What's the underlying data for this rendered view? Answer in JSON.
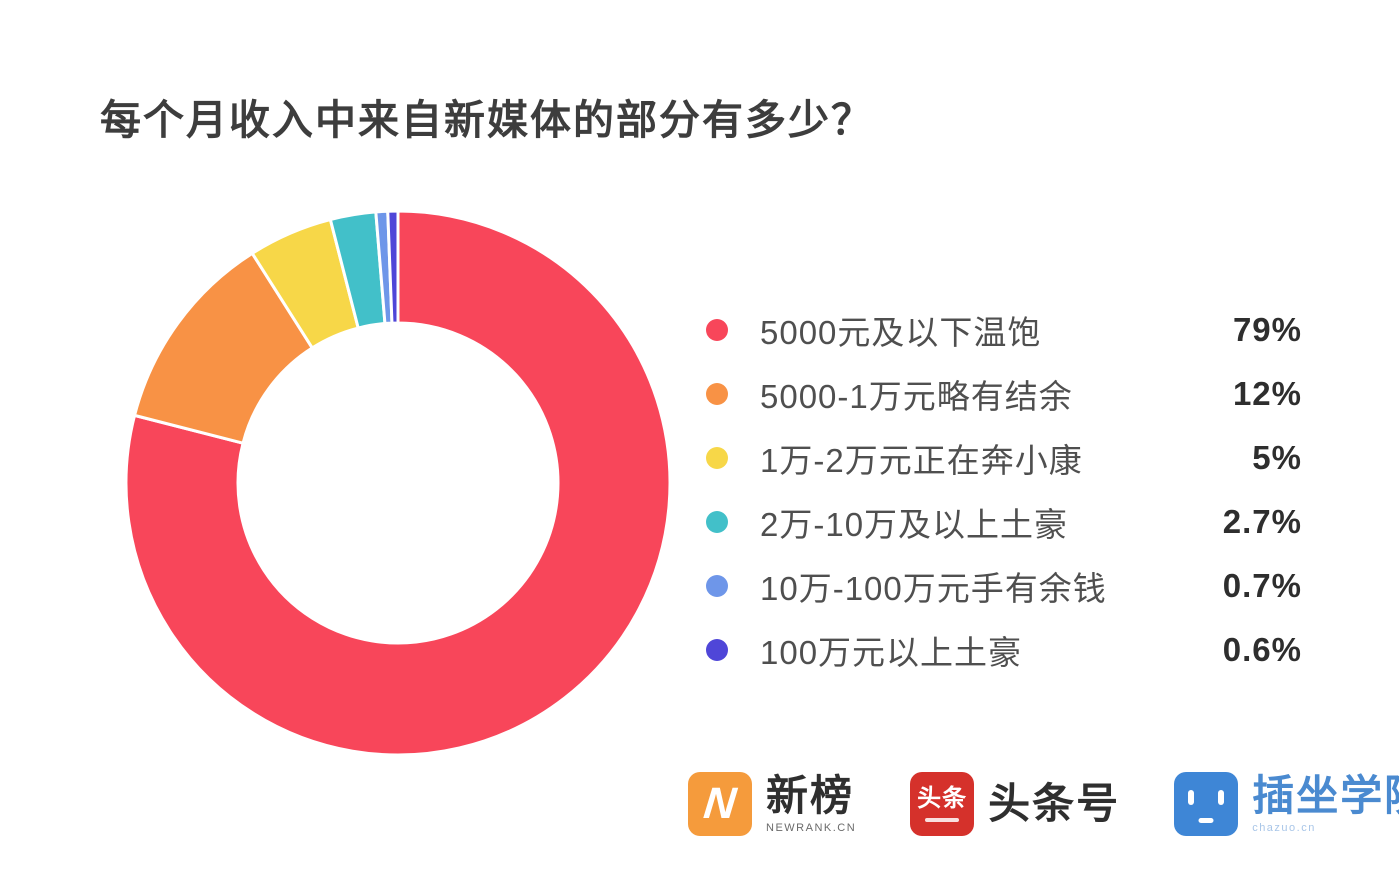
{
  "chart_data": {
    "type": "pie",
    "variant": "donut",
    "title": "每个月收入中来自新媒体的部分有多少？",
    "legend_position": "right",
    "start_angle_deg": 0,
    "direction": "clockwise",
    "items": [
      {
        "label": "5000元及以下温饱",
        "value": 79,
        "percent_label": "79%",
        "color": "#F8465A"
      },
      {
        "label": "5000-1万元略有结余",
        "value": 12,
        "percent_label": "12%",
        "color": "#F89245"
      },
      {
        "label": "1万-2万元正在奔小康",
        "value": 5,
        "percent_label": "5%",
        "color": "#F7D748"
      },
      {
        "label": "2万-10万及以上土豪",
        "value": 2.7,
        "percent_label": "2.7%",
        "color": "#42C0C9"
      },
      {
        "label": "10万-100万元手有余钱",
        "value": 0.7,
        "percent_label": "0.7%",
        "color": "#6E96E9"
      },
      {
        "label": "100万元以上土豪",
        "value": 0.6,
        "percent_label": "0.6%",
        "color": "#4F46D8"
      }
    ],
    "geometry": {
      "outer_radius": 272,
      "inner_radius": 160,
      "gap_stroke_color": "#ffffff"
    }
  },
  "footer": {
    "logos": [
      {
        "name": "newrank",
        "badge_glyph": "N",
        "badge_color": "#F59B3C",
        "brand_text": "新榜",
        "sub_text": "NEWRANK.CN"
      },
      {
        "name": "toutiao",
        "badge_glyph": "头条",
        "badge_color": "#D5312B",
        "brand_text": "头条号",
        "sub_text": ""
      },
      {
        "name": "chazuo",
        "badge_glyph": "",
        "badge_color": "#3E86D6",
        "brand_text": "插坐学院",
        "sub_text": "chazuo.cn"
      }
    ]
  }
}
